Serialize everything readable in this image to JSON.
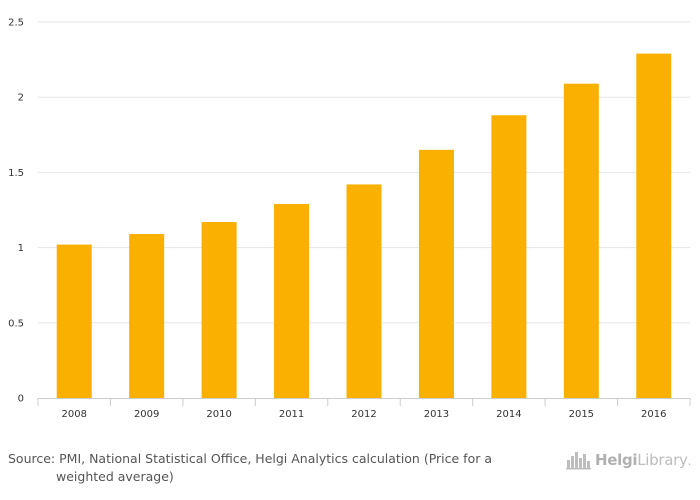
{
  "chart_data": {
    "type": "bar",
    "title": "",
    "xlabel": "",
    "ylabel": "",
    "categories": [
      "2008",
      "2009",
      "2010",
      "2011",
      "2012",
      "2013",
      "2014",
      "2015",
      "2016"
    ],
    "values": [
      1.02,
      1.09,
      1.17,
      1.29,
      1.42,
      1.65,
      1.88,
      2.09,
      2.29
    ],
    "ylim": [
      0,
      2.5
    ],
    "yticks": [
      "0",
      "0.5",
      "1",
      "1.5",
      "2",
      "2.5"
    ],
    "grid": true,
    "legend": "none",
    "bar_color": "#f9b000"
  },
  "footer": {
    "source_line1": "Source: PMI, National Statistical Office, Helgi Analytics calculation (Price for a",
    "source_line2": "weighted average)"
  },
  "logo": {
    "icon": "helgi-cityscape-icon",
    "brand_bold": "Helgi",
    "brand_light": "Library",
    "brand_dot": "."
  }
}
